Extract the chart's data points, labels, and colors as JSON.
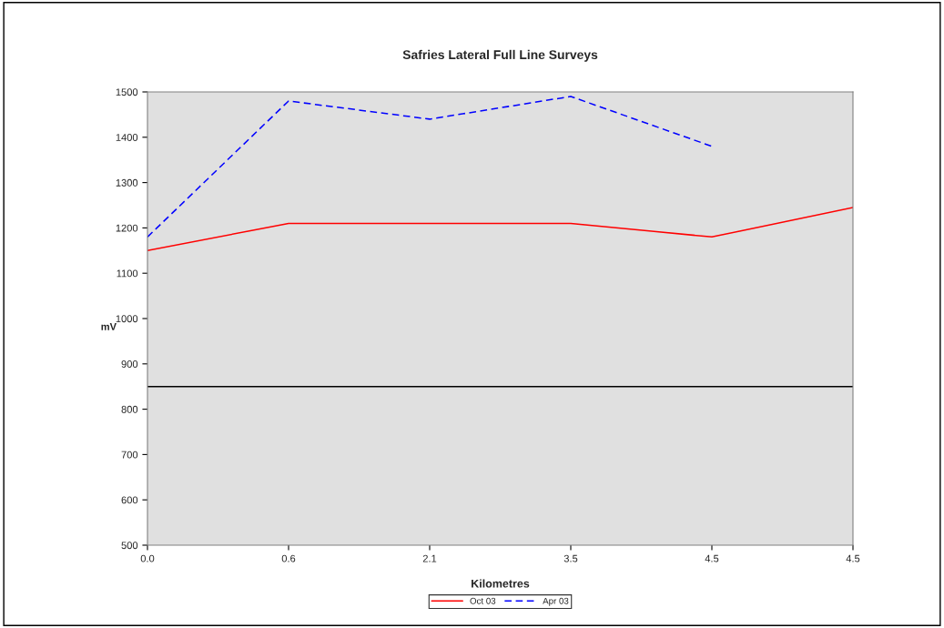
{
  "chart_data": {
    "type": "line",
    "title": "Safries Lateral Full Line Surveys",
    "xlabel": "Kilometres",
    "ylabel": "mV",
    "categories": [
      "0.0",
      "0.6",
      "2.1",
      "3.5",
      "4.5",
      "4.5"
    ],
    "series": [
      {
        "name": "Oct 03",
        "color": "#ff0000",
        "line_style": "solid",
        "values": [
          1150,
          1210,
          1210,
          1210,
          1180,
          1245
        ]
      },
      {
        "name": "Apr 03",
        "color": "#0000ff",
        "line_style": "dashed",
        "values": [
          1180,
          1480,
          1440,
          1490,
          1380,
          null
        ]
      }
    ],
    "ylim": [
      500,
      1500
    ],
    "yticks": [
      500,
      600,
      700,
      800,
      900,
      1000,
      1100,
      1200,
      1300,
      1400,
      1500
    ],
    "ref_lines": [
      {
        "axis": "y",
        "value": 850,
        "color": "#000000",
        "line_style": "solid"
      }
    ],
    "grid": false,
    "legend": "bottom",
    "marker": "none"
  }
}
